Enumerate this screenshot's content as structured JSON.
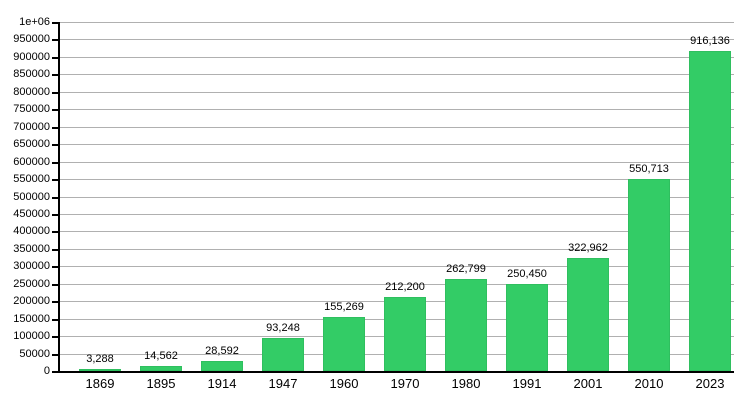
{
  "chart_data": {
    "type": "bar",
    "title": "",
    "xlabel": "",
    "ylabel": "",
    "categories": [
      "1869",
      "1895",
      "1914",
      "1947",
      "1960",
      "1970",
      "1980",
      "1991",
      "2001",
      "2010",
      "2023"
    ],
    "values": [
      3288,
      14562,
      28592,
      93248,
      155269,
      212200,
      262799,
      250450,
      322962,
      550713,
      916136
    ],
    "value_labels": [
      "3,288",
      "14,562",
      "28,592",
      "93,248",
      "155,269",
      "212,200",
      "262,799",
      "250,450",
      "322,962",
      "550,713",
      "916,136"
    ],
    "ylim": [
      0,
      1000000
    ],
    "y_tick_values": [
      0,
      50000,
      100000,
      150000,
      200000,
      250000,
      300000,
      350000,
      400000,
      450000,
      500000,
      550000,
      600000,
      650000,
      700000,
      750000,
      800000,
      850000,
      900000,
      950000,
      1000000
    ],
    "y_tick_labels": [
      "0",
      "50000",
      "100000",
      "150000",
      "200000",
      "250000",
      "300000",
      "350000",
      "400000",
      "450000",
      "500000",
      "550000",
      "600000",
      "650000",
      "700000",
      "750000",
      "800000",
      "850000",
      "900000",
      "950000",
      "1e+06"
    ],
    "grid": true,
    "legend": false,
    "colors": {
      "bar": "#33cc66",
      "bar_border": "#2fbf5f",
      "grid": "#b0b0b0",
      "axis": "#000000",
      "text": "#000000",
      "background": "#ffffff"
    }
  }
}
